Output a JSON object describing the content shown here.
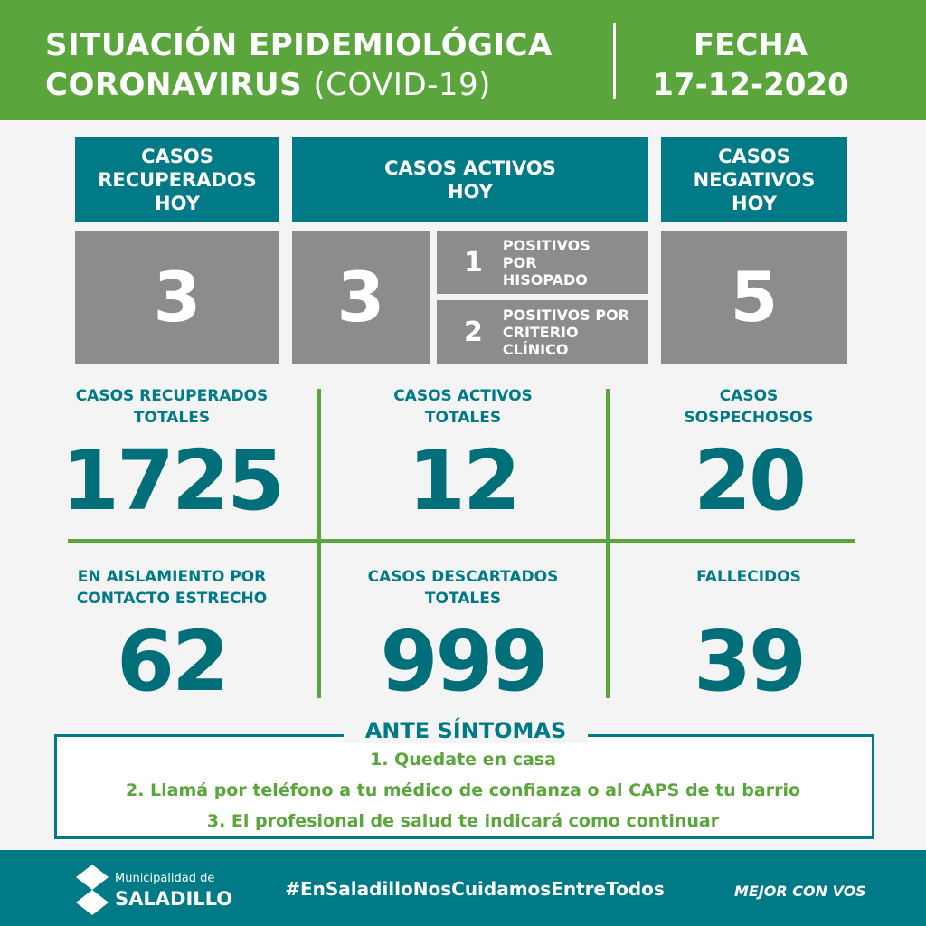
{
  "header": {
    "title_line1": "SITUACIÓN EPIDEMIOLÓGICA",
    "title_line2_bold": "CORONAVIRUS",
    "title_line2_light": "(COVID-19)",
    "fecha_label": "FECHA",
    "fecha": "17-12-2020"
  },
  "today": {
    "recuperados": {
      "label": "CASOS RECUPERADOS HOY",
      "value": "3"
    },
    "activos": {
      "label": "CASOS ACTIVOS HOY",
      "value": "3",
      "breakdown": [
        {
          "value": "1",
          "label": "POSITIVOS POR HISOPADO"
        },
        {
          "value": "2",
          "label": "POSITIVOS POR CRITERIO CLÍNICO"
        }
      ]
    },
    "negativos": {
      "label": "CASOS NEGATIVOS HOY",
      "value": "5"
    }
  },
  "totals": [
    {
      "label": "CASOS RECUPERADOS TOTALES",
      "value": "1725"
    },
    {
      "label": "CASOS ACTIVOS TOTALES",
      "value": "12"
    },
    {
      "label": "CASOS SOSPECHOSOS",
      "value": "20"
    },
    {
      "label": "EN AISLAMIENTO POR CONTACTO ESTRECHO",
      "value": "62"
    },
    {
      "label": "CASOS DESCARTADOS TOTALES",
      "value": "999"
    },
    {
      "label": "FALLECIDOS",
      "value": "39"
    }
  ],
  "symptoms": {
    "title": "ANTE SÍNTOMAS",
    "steps": [
      "1. Quedate en casa",
      "2. Llamá por teléfono a tu médico de confianza o al CAPS de tu barrio",
      "3. El profesional de salud te indicará como continuar"
    ]
  },
  "footer": {
    "logo_line1": "Municipalidad de",
    "logo_line2": "SALADILLO",
    "hashtag": "#EnSaladilloNosCuidamosEntreTodos",
    "slogan": "MEJOR CON VOS"
  },
  "colors": {
    "green": "#5aa63c",
    "teal": "#007a87",
    "gray": "#8c8c8c"
  }
}
